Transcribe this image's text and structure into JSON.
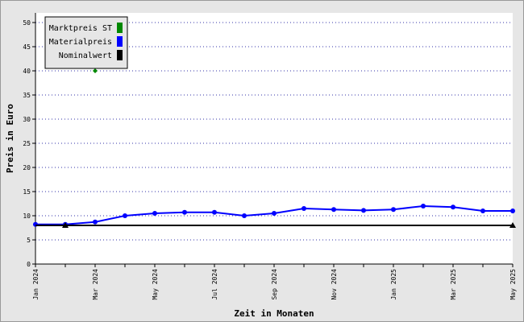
{
  "chart_data": {
    "type": "line",
    "xlabel": "Zeit in Monaten",
    "ylabel": "Preis in Euro",
    "ylim": [
      0,
      52
    ],
    "yticks": [
      0,
      5,
      10,
      15,
      20,
      25,
      30,
      35,
      40,
      45,
      50
    ],
    "grid": "horizontal dotted",
    "legend_position": "top-left",
    "x": [
      "2024-01",
      "2024-02",
      "2024-03",
      "2024-04",
      "2024-05",
      "2024-06",
      "2024-07",
      "2024-08",
      "2024-09",
      "2024-10",
      "2024-11",
      "2024-12",
      "2025-01",
      "2025-02",
      "2025-03",
      "2025-04",
      "2025-05"
    ],
    "x_tick_labels": [
      {
        "x": "2024-01",
        "label": "Jan 2024"
      },
      {
        "x": "2024-03",
        "label": "Mar 2024"
      },
      {
        "x": "2024-05",
        "label": "May 2024"
      },
      {
        "x": "2024-07",
        "label": "Jul 2024"
      },
      {
        "x": "2024-09",
        "label": "Sep 2024"
      },
      {
        "x": "2024-11",
        "label": "Nov 2024"
      },
      {
        "x": "2025-01",
        "label": "Jan 2025"
      },
      {
        "x": "2025-03",
        "label": "Mar 2025"
      },
      {
        "x": "2025-05",
        "label": "May 2025"
      }
    ],
    "series": [
      {
        "name": "Marktpreis ST",
        "color": "#008800",
        "marker": "diamond",
        "points": [
          {
            "x": "2024-03",
            "y": 40
          }
        ]
      },
      {
        "name": "Materialpreis",
        "color": "#0000ff",
        "marker": "circle",
        "points": [
          {
            "x": "2024-01",
            "y": 8.2
          },
          {
            "x": "2024-02",
            "y": 8.2
          },
          {
            "x": "2024-03",
            "y": 8.7
          },
          {
            "x": "2024-04",
            "y": 10.0
          },
          {
            "x": "2024-05",
            "y": 10.5
          },
          {
            "x": "2024-06",
            "y": 10.7
          },
          {
            "x": "2024-07",
            "y": 10.7
          },
          {
            "x": "2024-08",
            "y": 10.0
          },
          {
            "x": "2024-09",
            "y": 10.5
          },
          {
            "x": "2024-10",
            "y": 11.5
          },
          {
            "x": "2024-11",
            "y": 11.3
          },
          {
            "x": "2024-12",
            "y": 11.1
          },
          {
            "x": "2025-01",
            "y": 11.3
          },
          {
            "x": "2025-02",
            "y": 12.0
          },
          {
            "x": "2025-03",
            "y": 11.8
          },
          {
            "x": "2025-04",
            "y": 11.0
          },
          {
            "x": "2025-05",
            "y": 11.0
          }
        ]
      },
      {
        "name": "Nominalwert",
        "color": "#000000",
        "marker": "triangle",
        "points": [
          {
            "x": "2024-01",
            "y": 8.0
          },
          {
            "x": "2024-02",
            "y": 8.0
          },
          {
            "x": "2025-05",
            "y": 8.0
          }
        ],
        "marked": [
          "2024-02",
          "2025-05"
        ]
      }
    ]
  }
}
